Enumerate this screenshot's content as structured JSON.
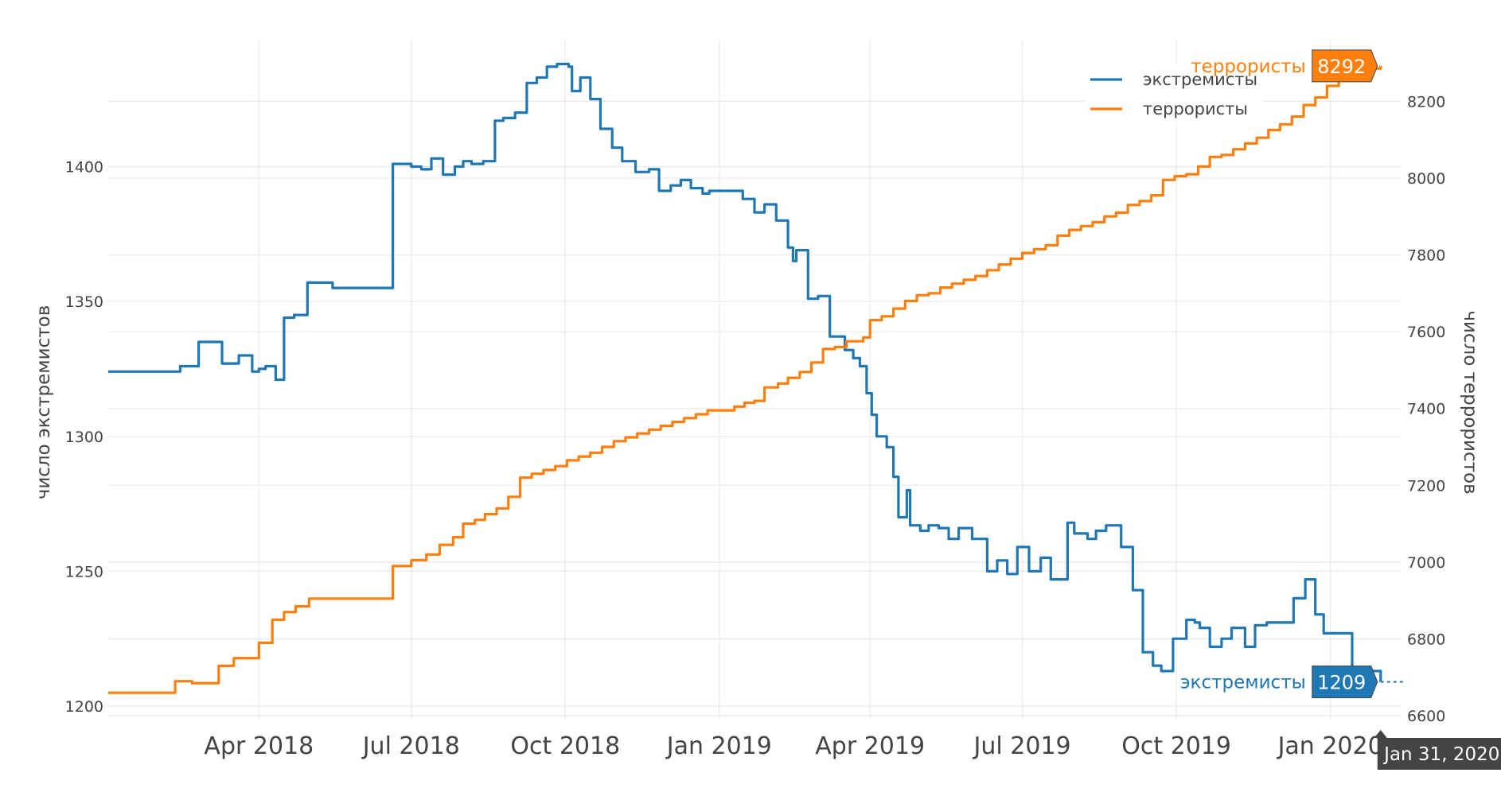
{
  "chart_data": {
    "type": "line",
    "title": "",
    "xlabel": "",
    "ylabel_left": "число экстремистов",
    "ylabel_right": "число террористов",
    "x_range": [
      "2018-01-01",
      "2020-02-12"
    ],
    "y_left_range": [
      1195,
      1447
    ],
    "y_right_range": [
      6590,
      8360
    ],
    "x_ticks": [
      {
        "date": "2018-04-01",
        "label": "Apr 2018"
      },
      {
        "date": "2018-07-01",
        "label": "Jul 2018"
      },
      {
        "date": "2018-10-01",
        "label": "Oct 2018"
      },
      {
        "date": "2019-01-01",
        "label": "Jan 2019"
      },
      {
        "date": "2019-04-01",
        "label": "Apr 2019"
      },
      {
        "date": "2019-07-01",
        "label": "Jul 2019"
      },
      {
        "date": "2019-10-01",
        "label": "Oct 2019"
      },
      {
        "date": "2020-01-01",
        "label": "Jan 2020"
      }
    ],
    "y_left_ticks": [
      1200,
      1250,
      1300,
      1350,
      1400
    ],
    "y_right_ticks": [
      6600,
      6800,
      7000,
      7200,
      7400,
      7600,
      7800,
      8000,
      8200
    ],
    "grid": true,
    "legend_position": "top-right",
    "series": [
      {
        "name": "экстремисты",
        "axis": "left",
        "color": "#1f77b4",
        "shape": "hv",
        "points": [
          [
            "2018-01-01",
            1324
          ],
          [
            "2018-02-13",
            1326
          ],
          [
            "2018-02-24",
            1335
          ],
          [
            "2018-03-10",
            1327
          ],
          [
            "2018-03-20",
            1330
          ],
          [
            "2018-03-25",
            1330
          ],
          [
            "2018-03-28",
            1324
          ],
          [
            "2018-04-01",
            1325
          ],
          [
            "2018-04-05",
            1326
          ],
          [
            "2018-04-11",
            1321
          ],
          [
            "2018-04-16",
            1344
          ],
          [
            "2018-04-22",
            1345
          ],
          [
            "2018-04-30",
            1357
          ],
          [
            "2018-05-08",
            1357
          ],
          [
            "2018-05-15",
            1355
          ],
          [
            "2018-06-20",
            1401
          ],
          [
            "2018-07-01",
            1400
          ],
          [
            "2018-07-07",
            1399
          ],
          [
            "2018-07-13",
            1403
          ],
          [
            "2018-07-20",
            1397
          ],
          [
            "2018-07-27",
            1400
          ],
          [
            "2018-08-01",
            1402
          ],
          [
            "2018-08-06",
            1401
          ],
          [
            "2018-08-13",
            1402
          ],
          [
            "2018-08-20",
            1417
          ],
          [
            "2018-08-25",
            1418
          ],
          [
            "2018-09-01",
            1420
          ],
          [
            "2018-09-08",
            1431
          ],
          [
            "2018-09-14",
            1433
          ],
          [
            "2018-09-20",
            1437
          ],
          [
            "2018-09-26",
            1438
          ],
          [
            "2018-10-03",
            1437
          ],
          [
            "2018-10-05",
            1428
          ],
          [
            "2018-10-10",
            1433
          ],
          [
            "2018-10-16",
            1425
          ],
          [
            "2018-10-22",
            1414
          ],
          [
            "2018-10-29",
            1407
          ],
          [
            "2018-11-04",
            1402
          ],
          [
            "2018-11-12",
            1398
          ],
          [
            "2018-11-20",
            1399
          ],
          [
            "2018-11-26",
            1391
          ],
          [
            "2018-12-03",
            1393
          ],
          [
            "2018-12-09",
            1395
          ],
          [
            "2018-12-15",
            1392
          ],
          [
            "2018-12-22",
            1390
          ],
          [
            "2018-12-26",
            1391
          ],
          [
            "2019-01-07",
            1391
          ],
          [
            "2019-01-15",
            1388
          ],
          [
            "2019-01-22",
            1383
          ],
          [
            "2019-01-28",
            1386
          ],
          [
            "2019-02-04",
            1380
          ],
          [
            "2019-02-11",
            1370
          ],
          [
            "2019-02-14",
            1365
          ],
          [
            "2019-02-16",
            1369
          ],
          [
            "2019-02-23",
            1351
          ],
          [
            "2019-03-01",
            1352
          ],
          [
            "2019-03-08",
            1337
          ],
          [
            "2019-03-14",
            1337
          ],
          [
            "2019-03-17",
            1332
          ],
          [
            "2019-03-22",
            1329
          ],
          [
            "2019-03-26",
            1326
          ],
          [
            "2019-03-30",
            1316
          ],
          [
            "2019-04-02",
            1308
          ],
          [
            "2019-04-05",
            1300
          ],
          [
            "2019-04-11",
            1296
          ],
          [
            "2019-04-15",
            1285
          ],
          [
            "2019-04-18",
            1270
          ],
          [
            "2019-04-21",
            1270
          ],
          [
            "2019-04-23",
            1280
          ],
          [
            "2019-04-25",
            1267
          ],
          [
            "2019-05-01",
            1265
          ],
          [
            "2019-05-06",
            1267
          ],
          [
            "2019-05-12",
            1266
          ],
          [
            "2019-05-18",
            1262
          ],
          [
            "2019-05-24",
            1266
          ],
          [
            "2019-06-01",
            1262
          ],
          [
            "2019-06-10",
            1250
          ],
          [
            "2019-06-16",
            1254
          ],
          [
            "2019-06-22",
            1249
          ],
          [
            "2019-06-28",
            1259
          ],
          [
            "2019-07-05",
            1250
          ],
          [
            "2019-07-12",
            1255
          ],
          [
            "2019-07-18",
            1247
          ],
          [
            "2019-07-28",
            1268
          ],
          [
            "2019-08-01",
            1264
          ],
          [
            "2019-08-09",
            1262
          ],
          [
            "2019-08-14",
            1265
          ],
          [
            "2019-08-20",
            1267
          ],
          [
            "2019-08-29",
            1259
          ],
          [
            "2019-09-05",
            1243
          ],
          [
            "2019-09-11",
            1220
          ],
          [
            "2019-09-17",
            1215
          ],
          [
            "2019-09-22",
            1213
          ],
          [
            "2019-09-29",
            1225
          ],
          [
            "2019-10-07",
            1232
          ],
          [
            "2019-10-12",
            1231
          ],
          [
            "2019-10-15",
            1229
          ],
          [
            "2019-10-21",
            1222
          ],
          [
            "2019-10-28",
            1225
          ],
          [
            "2019-11-03",
            1229
          ],
          [
            "2019-11-11",
            1222
          ],
          [
            "2019-11-17",
            1230
          ],
          [
            "2019-11-24",
            1231
          ],
          [
            "2019-12-10",
            1240
          ],
          [
            "2019-12-17",
            1247
          ],
          [
            "2019-12-23",
            1234
          ],
          [
            "2019-12-28",
            1227
          ],
          [
            "2020-01-14",
            1213
          ],
          [
            "2020-01-31",
            1209
          ]
        ]
      },
      {
        "name": "террористы",
        "axis": "right",
        "color": "#ff7f0e",
        "shape": "hv",
        "points": [
          [
            "2018-01-01",
            6660
          ],
          [
            "2018-02-10",
            6690
          ],
          [
            "2018-02-20",
            6685
          ],
          [
            "2018-03-08",
            6730
          ],
          [
            "2018-03-17",
            6750
          ],
          [
            "2018-03-22",
            6750
          ],
          [
            "2018-04-01",
            6790
          ],
          [
            "2018-04-09",
            6850
          ],
          [
            "2018-04-16",
            6870
          ],
          [
            "2018-04-23",
            6885
          ],
          [
            "2018-05-01",
            6905
          ],
          [
            "2018-05-14",
            6905
          ],
          [
            "2018-06-20",
            6990
          ],
          [
            "2018-07-01",
            7005
          ],
          [
            "2018-07-10",
            7020
          ],
          [
            "2018-07-18",
            7045
          ],
          [
            "2018-07-26",
            7065
          ],
          [
            "2018-08-01",
            7100
          ],
          [
            "2018-08-08",
            7110
          ],
          [
            "2018-08-14",
            7125
          ],
          [
            "2018-08-21",
            7140
          ],
          [
            "2018-08-28",
            7170
          ],
          [
            "2018-09-04",
            7220
          ],
          [
            "2018-09-11",
            7230
          ],
          [
            "2018-09-18",
            7240
          ],
          [
            "2018-09-25",
            7250
          ],
          [
            "2018-10-02",
            7265
          ],
          [
            "2018-10-09",
            7275
          ],
          [
            "2018-10-16",
            7285
          ],
          [
            "2018-10-23",
            7300
          ],
          [
            "2018-10-30",
            7315
          ],
          [
            "2018-11-06",
            7325
          ],
          [
            "2018-11-13",
            7335
          ],
          [
            "2018-11-20",
            7345
          ],
          [
            "2018-11-27",
            7355
          ],
          [
            "2018-12-04",
            7365
          ],
          [
            "2018-12-11",
            7375
          ],
          [
            "2018-12-18",
            7385
          ],
          [
            "2018-12-25",
            7395
          ],
          [
            "2019-01-10",
            7405
          ],
          [
            "2019-01-16",
            7415
          ],
          [
            "2019-01-22",
            7420
          ],
          [
            "2019-01-28",
            7455
          ],
          [
            "2019-02-05",
            7465
          ],
          [
            "2019-02-11",
            7480
          ],
          [
            "2019-02-18",
            7495
          ],
          [
            "2019-02-25",
            7520
          ],
          [
            "2019-03-04",
            7555
          ],
          [
            "2019-03-11",
            7560
          ],
          [
            "2019-03-18",
            7575
          ],
          [
            "2019-03-28",
            7585
          ],
          [
            "2019-04-01",
            7630
          ],
          [
            "2019-04-08",
            7640
          ],
          [
            "2019-04-15",
            7660
          ],
          [
            "2019-04-22",
            7680
          ],
          [
            "2019-04-29",
            7695
          ],
          [
            "2019-05-06",
            7700
          ],
          [
            "2019-05-13",
            7715
          ],
          [
            "2019-05-20",
            7725
          ],
          [
            "2019-05-27",
            7735
          ],
          [
            "2019-06-03",
            7745
          ],
          [
            "2019-06-10",
            7760
          ],
          [
            "2019-06-17",
            7775
          ],
          [
            "2019-06-24",
            7790
          ],
          [
            "2019-07-01",
            7805
          ],
          [
            "2019-07-08",
            7815
          ],
          [
            "2019-07-15",
            7825
          ],
          [
            "2019-07-22",
            7850
          ],
          [
            "2019-07-29",
            7865
          ],
          [
            "2019-08-05",
            7875
          ],
          [
            "2019-08-12",
            7885
          ],
          [
            "2019-08-19",
            7900
          ],
          [
            "2019-08-26",
            7910
          ],
          [
            "2019-09-02",
            7930
          ],
          [
            "2019-09-09",
            7940
          ],
          [
            "2019-09-16",
            7955
          ],
          [
            "2019-09-23",
            7995
          ],
          [
            "2019-09-30",
            8005
          ],
          [
            "2019-10-07",
            8010
          ],
          [
            "2019-10-14",
            8030
          ],
          [
            "2019-10-21",
            8055
          ],
          [
            "2019-10-28",
            8060
          ],
          [
            "2019-11-04",
            8075
          ],
          [
            "2019-11-11",
            8090
          ],
          [
            "2019-11-18",
            8105
          ],
          [
            "2019-11-25",
            8125
          ],
          [
            "2019-12-02",
            8140
          ],
          [
            "2019-12-09",
            8160
          ],
          [
            "2019-12-16",
            8190
          ],
          [
            "2019-12-23",
            8210
          ],
          [
            "2019-12-30",
            8240
          ],
          [
            "2020-01-06",
            8255
          ],
          [
            "2020-01-13",
            8275
          ],
          [
            "2020-01-20",
            8285
          ],
          [
            "2020-01-31",
            8292
          ]
        ]
      }
    ],
    "hover": {
      "date_label": "Jan 31, 2020",
      "items": [
        {
          "series": "экстремисты",
          "label": "экстремисты",
          "value": "1209",
          "value_num": 1209,
          "axis": "left",
          "bg": "#1f77b4",
          "text_color": "#1f77b4"
        },
        {
          "series": "террористы",
          "label": "террористы",
          "value": "8292",
          "value_num": 8292,
          "axis": "right",
          "bg": "#ff7f0e",
          "text_color": "#ff7f0e"
        }
      ]
    }
  }
}
